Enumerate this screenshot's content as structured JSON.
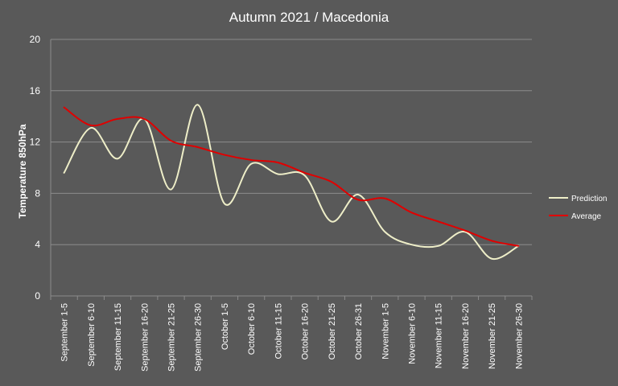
{
  "chart_data": {
    "type": "line",
    "title": "Autumn 2021 / Macedonia",
    "xlabel": "",
    "ylabel": "Temperature 850hPa",
    "ylim": [
      0,
      20
    ],
    "yticks": [
      0,
      4,
      8,
      12,
      16,
      20
    ],
    "grid": "horizontal",
    "legend_position": "right",
    "categories": [
      "September 1-5",
      "September 6-10",
      "September 11-15",
      "September 16-20",
      "September 21-25",
      "September 26-30",
      "October 1-5",
      "October 6-10",
      "October 11-15",
      "October 16-20",
      "October 21-25",
      "October 26-31",
      "November 1-5",
      "November 6-10",
      "November 11-15",
      "November 16-20",
      "November 21-25",
      "November 26-30"
    ],
    "series": [
      {
        "name": "Prediction",
        "color": "#eeeec8",
        "values": [
          9.6,
          13.1,
          10.7,
          13.8,
          8.3,
          14.9,
          7.2,
          10.3,
          9.5,
          9.4,
          5.8,
          7.9,
          5.0,
          4.0,
          3.9,
          5.0,
          2.9,
          3.9
        ]
      },
      {
        "name": "Average",
        "color": "#e00000",
        "values": [
          14.7,
          13.3,
          13.8,
          13.8,
          12.1,
          11.6,
          11.0,
          10.6,
          10.4,
          9.6,
          8.9,
          7.5,
          7.6,
          6.5,
          5.8,
          5.1,
          4.3,
          3.9
        ]
      }
    ]
  }
}
